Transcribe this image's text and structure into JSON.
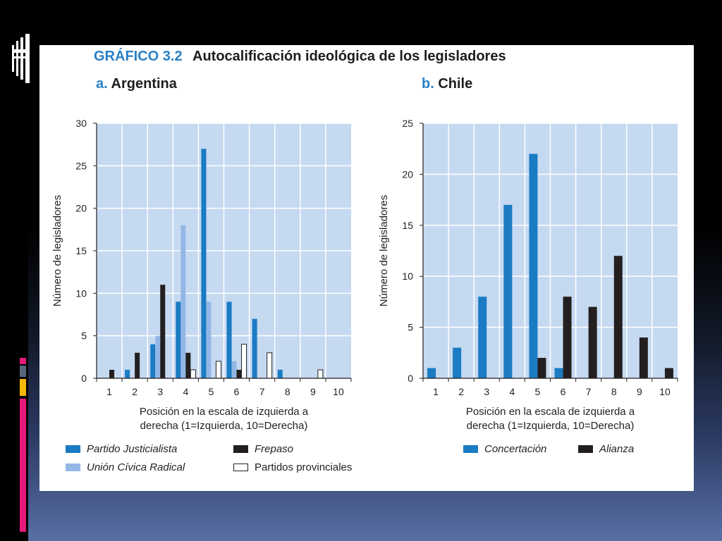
{
  "slide": {
    "logo_icon": "stacked-bars-icon",
    "background_top": "#000000",
    "background_bottom": "#5a70a3",
    "accent_blocks": [
      "#e5197a",
      "#56657a",
      "#f5b800",
      "#e5197a"
    ]
  },
  "figure": {
    "number": "GRÁFICO 3.2",
    "title": "Autocalificación ideológica de los legisladores",
    "accent_color": "#2a80c6"
  },
  "chart_data": [
    {
      "type": "bar",
      "panel_label": "a.",
      "title": "Argentina",
      "categories": [
        "1",
        "2",
        "3",
        "4",
        "5",
        "6",
        "7",
        "8",
        "9",
        "10"
      ],
      "series": [
        {
          "name": "Partido Justicialista",
          "color": "#1b7bc3",
          "values": [
            0,
            1,
            4,
            9,
            27,
            9,
            7,
            1,
            0,
            0
          ]
        },
        {
          "name": "Unión Cívica Radical",
          "color": "#93b7e5",
          "values": [
            0,
            0,
            5,
            18,
            9,
            2,
            0,
            0,
            0,
            0
          ]
        },
        {
          "name": "Frepaso",
          "color": "#231f20",
          "values": [
            1,
            3,
            11,
            3,
            0,
            1,
            0,
            0,
            0,
            0
          ]
        },
        {
          "name": "Partidos provinciales",
          "color": "#ffffff",
          "edgecolor": "#231f20",
          "values": [
            0,
            0,
            0,
            1,
            2,
            4,
            3,
            0,
            1,
            0
          ]
        }
      ],
      "xlabel": [
        "Posición en la escala de izquierda a",
        "derecha (1=Izquierda, 10=Derecha)"
      ],
      "ylabel": "Número de legisladores",
      "ylim": [
        0,
        30
      ],
      "yticks": [
        0,
        5,
        10,
        15,
        20,
        25,
        30
      ],
      "grid": true,
      "plot_background": "#c5d9f1",
      "grid_color": "#ffffff",
      "axis_color": "#231f20",
      "legend_position": "bottom"
    },
    {
      "type": "bar",
      "panel_label": "b.",
      "title": "Chile",
      "categories": [
        "1",
        "2",
        "3",
        "4",
        "5",
        "6",
        "7",
        "8",
        "9",
        "10"
      ],
      "series": [
        {
          "name": "Concertación",
          "color": "#1b7bc3",
          "values": [
            1,
            3,
            8,
            17,
            22,
            1,
            0,
            0,
            0,
            0
          ]
        },
        {
          "name": "Alianza",
          "color": "#231f20",
          "values": [
            0,
            0,
            0,
            0,
            2,
            8,
            7,
            12,
            4,
            1
          ]
        }
      ],
      "xlabel": [
        "Posición en la escala de izquierda a",
        "derecha (1=Izquierda, 10=Derecha)"
      ],
      "ylabel": "Número de legisladores",
      "ylim": [
        0,
        25
      ],
      "yticks": [
        0,
        5,
        10,
        15,
        20,
        25
      ],
      "grid": true,
      "plot_background": "#c5d9f1",
      "grid_color": "#ffffff",
      "axis_color": "#231f20",
      "legend_position": "bottom"
    }
  ]
}
